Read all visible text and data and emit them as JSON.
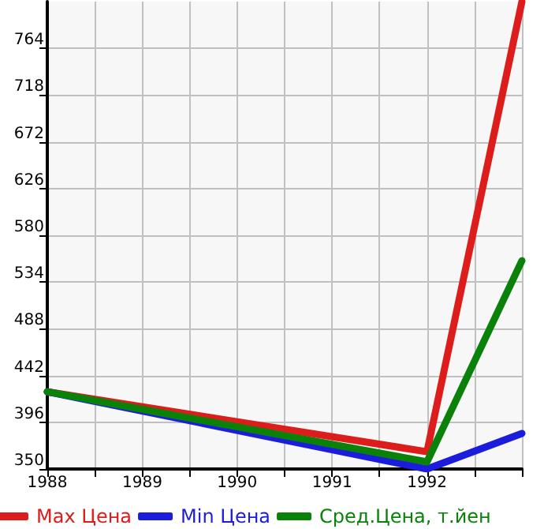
{
  "chart_data": {
    "type": "line",
    "x": [
      1988,
      1992,
      1993
    ],
    "series": [
      {
        "name": "Max Цена",
        "color": "#dd1c1c",
        "values": [
          426,
          367,
          810
        ]
      },
      {
        "name": "Min Цена",
        "color": "#1c1cdd",
        "values": [
          426,
          350,
          385
        ]
      },
      {
        "name": "Сред.Цена, т.йен",
        "color": "#0a820a",
        "values": [
          426,
          357,
          555
        ]
      }
    ],
    "xlim": [
      1988,
      1993
    ],
    "xticks": [
      1988,
      {
        "value": 1988.5,
        "label": null
      },
      1989,
      {
        "value": 1989.5,
        "label": null
      },
      1990,
      {
        "value": 1990.5,
        "label": null
      },
      1991,
      {
        "value": 1991.5,
        "label": null
      },
      1992,
      {
        "value": 1992.5,
        "label": null
      },
      {
        "value": 1993,
        "label": null
      }
    ],
    "ylim": [
      350,
      810
    ],
    "yticks": [
      350,
      396,
      442,
      488,
      534,
      580,
      626,
      672,
      718,
      764
    ],
    "grid": true,
    "legend": "bottom",
    "marker": "none",
    "line_style": "solid"
  }
}
